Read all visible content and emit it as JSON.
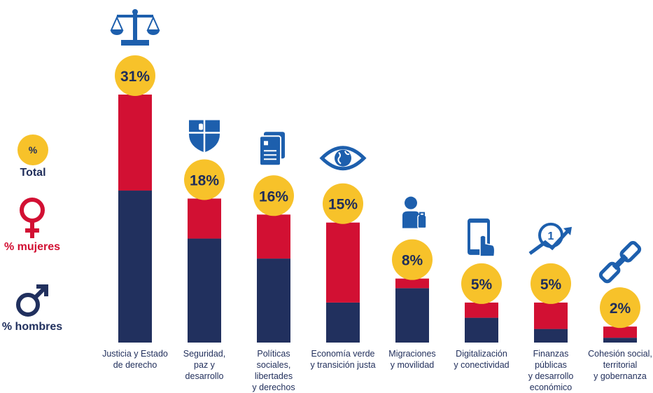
{
  "colors": {
    "men": "#21305e",
    "women": "#d21033",
    "total": "#f7c22a",
    "icon": "#1d5fad",
    "text": "#1f2d5a"
  },
  "legend": {
    "total_symbol": "%",
    "total_label": "Total",
    "women_label": "% mujeres",
    "men_label": "% hombres"
  },
  "chart_data": {
    "type": "bar",
    "stacked": true,
    "categories": [
      "Justicia y Estado\nde derecho",
      "Seguridad,\npaz y\ndesarrollo",
      "Políticas\nsociales,\nlibertades\ny derechos",
      "Economía verde\ny transición justa",
      "Migraciones\ny movilidad",
      "Digitalización\ny conectividad",
      "Finanzas\npúblicas\ny desarrollo\neconómico",
      "Cohesión social,\nterritorial\ny gobernanza"
    ],
    "totals": [
      "31%",
      "18%",
      "16%",
      "15%",
      "8%",
      "5%",
      "5%",
      "2%"
    ],
    "total_values": [
      31,
      18,
      16,
      15,
      8,
      5,
      5,
      2
    ],
    "series": [
      {
        "name": "% hombres",
        "values": [
          19,
          13,
          10.5,
          5,
          6.8,
          3.1,
          1.7,
          0.6
        ]
      },
      {
        "name": "% mujeres",
        "values": [
          12,
          5,
          5.5,
          10,
          1.2,
          1.9,
          3.3,
          1.4
        ]
      }
    ],
    "icons": [
      "scales-icon",
      "shield-icon",
      "documents-icon",
      "eye-globe-icon",
      "traveler-luggage-icon",
      "smartphone-touch-icon",
      "growth-chart-icon",
      "chain-link-icon"
    ],
    "ylim": [
      0,
      31
    ]
  }
}
